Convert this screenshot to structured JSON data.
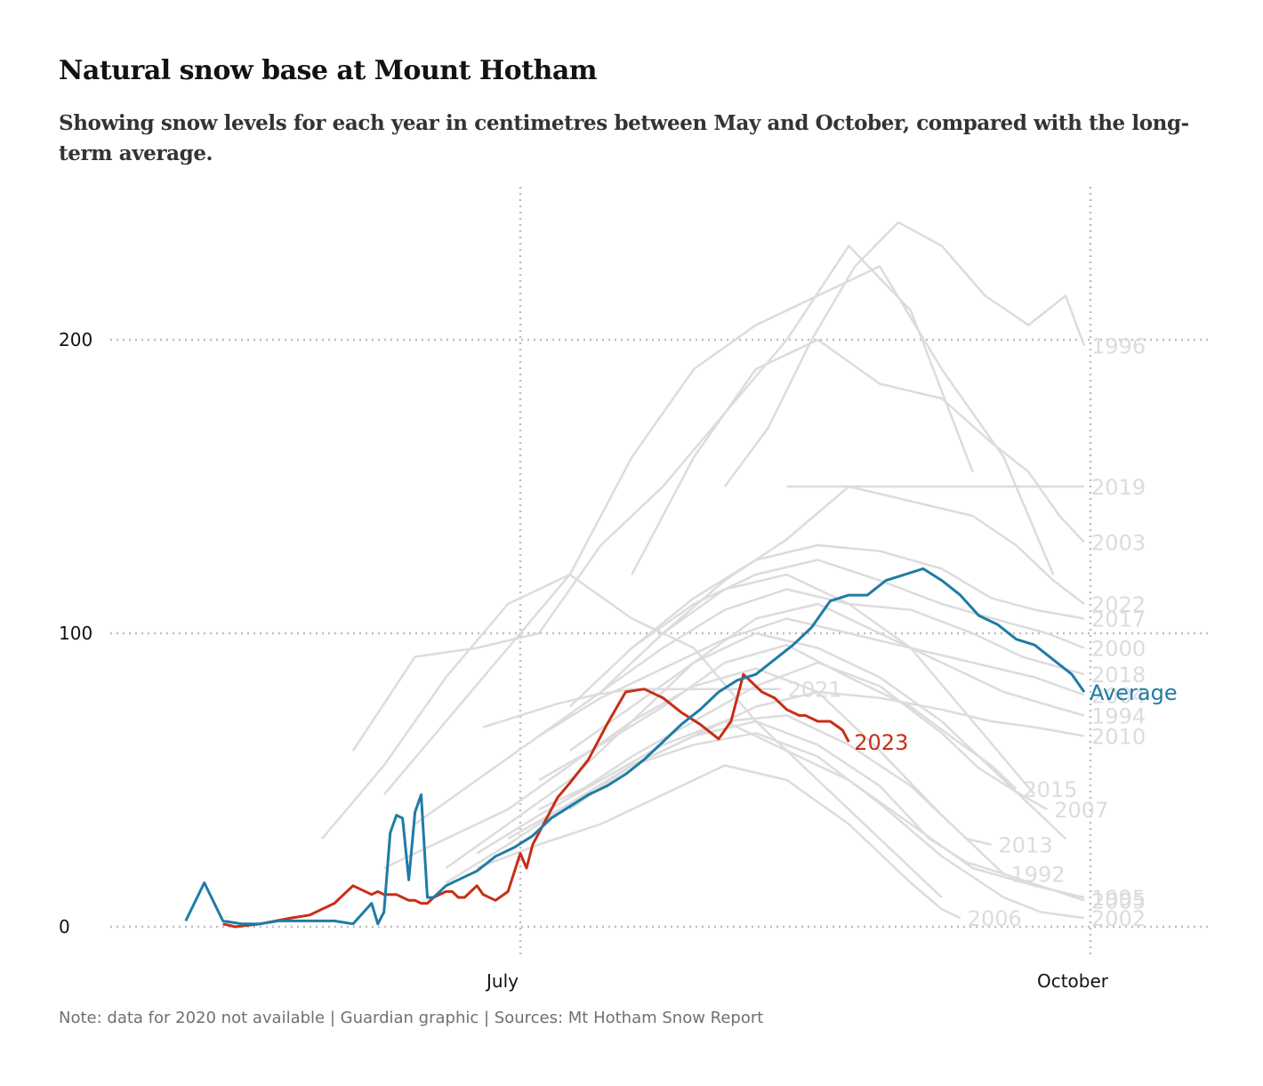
{
  "title": "Natural snow base at Mount Hotham",
  "subtitle": "Showing snow levels for each year in centimetres between May and October, compared with the long-term average.",
  "footnote": "Note: data for 2020 not available | Guardian graphic | Sources: Mt Hotham Snow Report",
  "colors": {
    "average": "#1f7ba6",
    "highlight_2023": "#c62f17",
    "background_years": "#dcdcdc",
    "grid": "#bdbdbd"
  },
  "chart_data": {
    "type": "line",
    "title": "Natural snow base at Mount Hotham",
    "xlabel": "",
    "ylabel": "",
    "x_unit": "day of year",
    "xlim": [
      126,
      295
    ],
    "ylim": [
      -10,
      250
    ],
    "yticks": [
      0,
      100,
      200
    ],
    "ytick_labels": [
      "0",
      "100",
      "200"
    ],
    "xticks": [
      182,
      274
    ],
    "xtick_labels": [
      "July",
      "October"
    ],
    "grid": "dotted, at y ticks and x ticks",
    "series": [
      {
        "name": "Average",
        "role": "highlight",
        "x": [
          128,
          131,
          134,
          137,
          140,
          143,
          146,
          149,
          152,
          155,
          158,
          159,
          160,
          161,
          162,
          163,
          164,
          165,
          166,
          167,
          168,
          170,
          172,
          175,
          178,
          181,
          184,
          187,
          190,
          193,
          196,
          199,
          202,
          205,
          208,
          211,
          214,
          217,
          220,
          223,
          226,
          229,
          232,
          235,
          238,
          241,
          244,
          247,
          250,
          253,
          256,
          259,
          262,
          265,
          268,
          271,
          273
        ],
        "y": [
          2,
          15,
          2,
          1,
          1,
          2,
          2,
          2,
          2,
          1,
          8,
          1,
          5,
          32,
          38,
          37,
          16,
          39,
          45,
          10,
          10,
          14,
          16,
          19,
          24,
          27,
          31,
          37,
          41,
          45,
          48,
          52,
          57,
          63,
          69,
          74,
          80,
          84,
          86,
          91,
          96,
          102,
          111,
          113,
          113,
          118,
          120,
          122,
          118,
          113,
          106,
          103,
          98,
          96,
          91,
          86,
          80
        ]
      },
      {
        "name": "2023",
        "role": "highlight",
        "x": [
          134,
          136,
          140,
          145,
          148,
          152,
          155,
          158,
          159,
          160,
          162,
          163,
          164,
          165,
          166,
          167,
          168,
          169,
          170,
          171,
          172,
          173,
          174,
          175,
          176,
          178,
          180,
          182,
          183,
          184,
          186,
          188,
          190,
          193,
          196,
          199,
          202,
          205,
          208,
          211,
          214,
          216,
          218,
          221,
          223,
          225,
          227,
          228,
          230,
          232,
          234,
          235
        ],
        "y": [
          1,
          0,
          1,
          3,
          4,
          8,
          14,
          11,
          12,
          11,
          11,
          10,
          9,
          9,
          8,
          8,
          10,
          11,
          12,
          12,
          10,
          10,
          12,
          14,
          11,
          9,
          12,
          25,
          20,
          28,
          36,
          44,
          49,
          57,
          69,
          80,
          81,
          78,
          73,
          69,
          64,
          70,
          86,
          80,
          78,
          74,
          72,
          72,
          70,
          70,
          67,
          63
        ]
      },
      {
        "name": "1996",
        "role": "background",
        "label_value": 198,
        "x": [
          215,
          222,
          229,
          236,
          243,
          250,
          257,
          264,
          270,
          273
        ],
        "y": [
          150,
          170,
          200,
          225,
          240,
          232,
          215,
          205,
          215,
          198
        ]
      },
      {
        "name": "2019",
        "role": "background",
        "label_value": 150,
        "x": [
          225,
          231,
          237,
          240,
          244,
          248,
          252,
          256,
          260,
          264,
          268,
          273
        ],
        "y": [
          150,
          150,
          150,
          150,
          150,
          150,
          150,
          150,
          150,
          150,
          150,
          150
        ]
      },
      {
        "name": "2003",
        "role": "background",
        "label_value": 131,
        "x": [
          200,
          210,
          220,
          230,
          240,
          250,
          258,
          264,
          269,
          273
        ],
        "y": [
          120,
          160,
          190,
          200,
          185,
          180,
          165,
          155,
          140,
          131
        ]
      },
      {
        "name": "2022",
        "role": "background",
        "label_value": 110,
        "x": [
          205,
          215,
          225,
          235,
          245,
          255,
          262,
          268,
          273
        ],
        "y": [
          100,
          118,
          132,
          150,
          145,
          140,
          130,
          118,
          110
        ]
      },
      {
        "name": "2017",
        "role": "background",
        "label_value": 105,
        "x": [
          200,
          210,
          220,
          230,
          240,
          250,
          258,
          265,
          273
        ],
        "y": [
          95,
          112,
          125,
          130,
          128,
          122,
          112,
          108,
          105
        ]
      },
      {
        "name": "2000",
        "role": "background",
        "label_value": 95,
        "x": [
          190,
          200,
          210,
          220,
          230,
          240,
          250,
          260,
          267,
          273
        ],
        "y": [
          75,
          95,
          110,
          120,
          125,
          118,
          110,
          104,
          100,
          95
        ]
      },
      {
        "name": "2018",
        "role": "background",
        "label_value": 86,
        "x": [
          195,
          205,
          215,
          225,
          235,
          245,
          255,
          263,
          273
        ],
        "y": [
          80,
          95,
          108,
          115,
          110,
          108,
          100,
          92,
          86
        ]
      },
      {
        "name": "2004",
        "role": "background",
        "label_value": 79,
        "x": [
          185,
          195,
          205,
          215,
          225,
          235,
          245,
          255,
          265,
          273
        ],
        "y": [
          65,
          78,
          88,
          98,
          105,
          100,
          95,
          90,
          85,
          79
        ]
      },
      {
        "name": "1994",
        "role": "background",
        "label_value": 72,
        "x": [
          190,
          200,
          210,
          220,
          230,
          240,
          250,
          260,
          268,
          273
        ],
        "y": [
          60,
          75,
          90,
          105,
          110,
          100,
          90,
          80,
          75,
          72
        ]
      },
      {
        "name": "2010",
        "role": "background",
        "label_value": 65,
        "x": [
          190,
          200,
          210,
          220,
          230,
          240,
          250,
          258,
          265,
          273
        ],
        "y": [
          40,
          55,
          65,
          75,
          80,
          78,
          74,
          70,
          68,
          65
        ]
      },
      {
        "name": "2021",
        "role": "background",
        "label_value": 81,
        "x": [
          176,
          182,
          188,
          194,
          200,
          206,
          212,
          218,
          224
        ],
        "y": [
          68,
          72,
          76,
          79,
          81,
          81,
          81,
          81,
          81
        ]
      },
      {
        "name": "2015",
        "role": "background",
        "label_value": 47,
        "x": [
          185,
          195,
          205,
          215,
          225,
          235,
          245,
          252,
          258,
          262
        ],
        "y": [
          50,
          62,
          75,
          90,
          96,
          85,
          75,
          64,
          55,
          47
        ]
      },
      {
        "name": "2007",
        "role": "background",
        "label_value": 40,
        "x": [
          190,
          200,
          210,
          220,
          230,
          240,
          250,
          256,
          262,
          267
        ],
        "y": [
          44,
          58,
          70,
          82,
          90,
          82,
          66,
          54,
          46,
          40
        ]
      },
      {
        "name": "2013",
        "role": "background",
        "label_value": 28,
        "x": [
          185,
          195,
          205,
          215,
          225,
          235,
          245,
          250,
          254,
          258
        ],
        "y": [
          40,
          50,
          62,
          70,
          72,
          62,
          48,
          38,
          30,
          28
        ]
      },
      {
        "name": "1992",
        "role": "background",
        "label_value": 18,
        "x": [
          180,
          190,
          200,
          210,
          220,
          230,
          240,
          248,
          254,
          260
        ],
        "y": [
          30,
          42,
          55,
          65,
          70,
          62,
          48,
          30,
          22,
          18
        ]
      },
      {
        "name": "1995",
        "role": "background",
        "label_value": 10,
        "x": [
          175,
          185,
          195,
          205,
          215,
          225,
          235,
          245,
          255,
          265,
          273
        ],
        "y": [
          25,
          38,
          50,
          62,
          70,
          60,
          50,
          35,
          20,
          14,
          10
        ]
      },
      {
        "name": "2005",
        "role": "background",
        "label_value": 9,
        "x": [
          160,
          170,
          180,
          190,
          200,
          210,
          220,
          230,
          240,
          250,
          260,
          273
        ],
        "y": [
          20,
          30,
          40,
          55,
          70,
          82,
          88,
          80,
          60,
          38,
          18,
          9
        ]
      },
      {
        "name": "2006",
        "role": "background",
        "label_value": 3,
        "x": [
          175,
          185,
          195,
          205,
          215,
          225,
          235,
          245,
          250,
          253
        ],
        "y": [
          20,
          28,
          35,
          45,
          55,
          50,
          35,
          15,
          6,
          3
        ]
      },
      {
        "name": "2002",
        "role": "background",
        "label_value": 3,
        "x": [
          170,
          180,
          190,
          200,
          210,
          220,
          230,
          240,
          250,
          260,
          266,
          273
        ],
        "y": [
          15,
          28,
          42,
          55,
          62,
          66,
          58,
          42,
          24,
          10,
          5,
          3
        ]
      },
      {
        "name": "",
        "role": "background-unlabeled",
        "x": [
          150,
          160,
          170,
          180,
          190,
          200,
          210,
          220,
          230,
          240,
          250
        ],
        "y": [
          30,
          55,
          85,
          110,
          120,
          105,
          95,
          70,
          50,
          30,
          10
        ]
      },
      {
        "name": "",
        "role": "background-unlabeled",
        "x": [
          155,
          165,
          175,
          185,
          195,
          205,
          215,
          225,
          235,
          245,
          255
        ],
        "y": [
          60,
          92,
          95,
          100,
          130,
          150,
          175,
          200,
          232,
          210,
          155
        ]
      },
      {
        "name": "",
        "role": "background-unlabeled",
        "x": [
          160,
          170,
          180,
          190,
          200,
          210,
          220,
          230,
          240,
          250,
          260,
          268
        ],
        "y": [
          45,
          70,
          95,
          120,
          160,
          190,
          205,
          215,
          225,
          190,
          160,
          120
        ]
      },
      {
        "name": "",
        "role": "background-unlabeled",
        "x": [
          165,
          175,
          185,
          195,
          205,
          215,
          225,
          235,
          245,
          255,
          265
        ],
        "y": [
          35,
          50,
          65,
          80,
          100,
          115,
          120,
          110,
          95,
          70,
          45
        ]
      },
      {
        "name": "",
        "role": "background-unlabeled",
        "x": [
          170,
          180,
          190,
          200,
          210,
          220,
          230,
          240,
          250,
          260,
          270
        ],
        "y": [
          20,
          35,
          50,
          70,
          90,
          100,
          95,
          85,
          70,
          50,
          30
        ]
      }
    ],
    "annotations": [
      "1996",
      "2019",
      "2003",
      "2022",
      "2017",
      "2000",
      "2018",
      "2004",
      "1994",
      "2010",
      "2021",
      "2015",
      "2007",
      "2013",
      "1992",
      "1995",
      "2005",
      "2006",
      "2002",
      "2023",
      "Average"
    ]
  }
}
